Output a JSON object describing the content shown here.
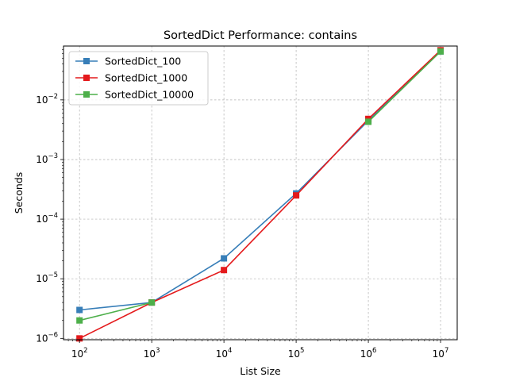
{
  "chart_data": {
    "type": "line",
    "title": "SortedDict Performance: contains",
    "xlabel": "List Size",
    "ylabel": "Seconds",
    "x_scale": "log",
    "y_scale": "log",
    "xlim": [
      60,
      17000000
    ],
    "ylim": [
      9.5e-07,
      0.08
    ],
    "grid": true,
    "legend_position": "top-left",
    "x_ticks": [
      {
        "value": 100,
        "base": "10",
        "exp": "2"
      },
      {
        "value": 1000,
        "base": "10",
        "exp": "3"
      },
      {
        "value": 10000,
        "base": "10",
        "exp": "4"
      },
      {
        "value": 100000,
        "base": "10",
        "exp": "5"
      },
      {
        "value": 1000000,
        "base": "10",
        "exp": "6"
      },
      {
        "value": 10000000,
        "base": "10",
        "exp": "7"
      }
    ],
    "y_ticks": [
      {
        "value": 1e-06,
        "base": "10",
        "exp": "−6"
      },
      {
        "value": 1e-05,
        "base": "10",
        "exp": "−5"
      },
      {
        "value": 0.0001,
        "base": "10",
        "exp": "−4"
      },
      {
        "value": 0.001,
        "base": "10",
        "exp": "−3"
      },
      {
        "value": 0.01,
        "base": "10",
        "exp": "−2"
      }
    ],
    "x": [
      100,
      1000,
      10000,
      100000,
      1000000,
      10000000
    ],
    "series": [
      {
        "name": "SortedDict_100",
        "color": "#377eb8",
        "values": [
          3e-06,
          4e-06,
          2.2e-05,
          0.00027,
          0.0045,
          0.065
        ]
      },
      {
        "name": "SortedDict_1000",
        "color": "#e41a1c",
        "values": [
          1e-06,
          4e-06,
          1.4e-05,
          0.00025,
          0.0048,
          0.068
        ]
      },
      {
        "name": "SortedDict_10000",
        "color": "#4daf4a",
        "values": [
          2e-06,
          4e-06,
          null,
          null,
          0.0043,
          0.065
        ]
      }
    ]
  }
}
